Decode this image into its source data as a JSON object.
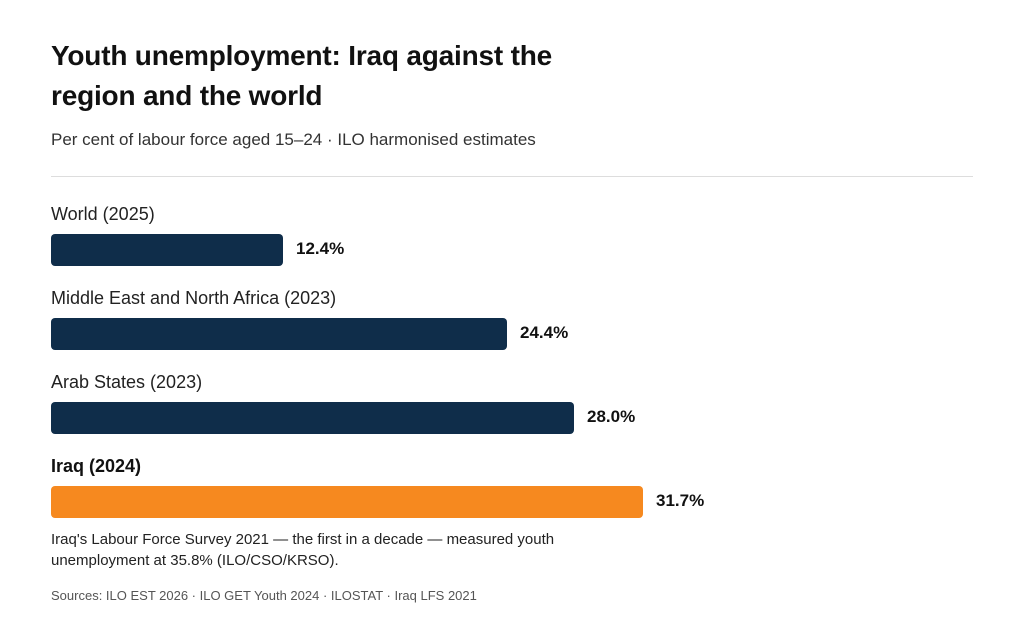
{
  "chart_data": {
    "type": "bar",
    "orientation": "horizontal",
    "title": "Youth unemployment: Iraq against the region and the world",
    "subtitle": "Per cent of labour force aged 15–24 · ILO harmonised estimates",
    "categories": [
      "World (2025)",
      "Middle East and North Africa (2023)",
      "Arab States (2023)",
      "Iraq (2024)"
    ],
    "values": [
      12.4,
      24.4,
      28.0,
      31.7
    ],
    "value_labels": [
      "12.4%",
      "24.4%",
      "28.0%",
      "31.7%"
    ],
    "highlight": [
      false,
      false,
      false,
      true
    ],
    "colors": {
      "default": "#0f2d4a",
      "highlight": "#f6891f"
    },
    "xlim": [
      0,
      38
    ],
    "grid": false,
    "note": "Iraq's Labour Force Survey 2021 — the first in a decade — measured youth unemployment at 35.8% (ILO/CSO/KRSO).",
    "sources": "Sources: ILO EST 2026 · ILO GET Youth 2024 · ILOSTAT · Iraq LFS 2021"
  }
}
